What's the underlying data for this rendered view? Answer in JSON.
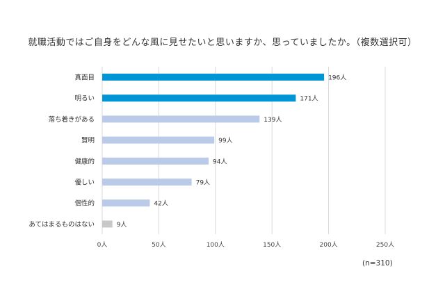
{
  "chart_data": {
    "type": "bar",
    "orientation": "horizontal",
    "title": "就職活動ではご自身をどんな風に見せたいと思いますか、思っていましたか。（複数選択可）",
    "categories": [
      "真面目",
      "明るい",
      "落ち着きがある",
      "賢明",
      "健康的",
      "優しい",
      "個性的",
      "あてはまるものはない"
    ],
    "values": [
      196,
      171,
      139,
      99,
      94,
      79,
      42,
      9
    ],
    "value_labels": [
      "196人",
      "171人",
      "139人",
      "99人",
      "94人",
      "79人",
      "42人",
      "9人"
    ],
    "bar_colors": [
      "#0096d6",
      "#0096d6",
      "#b9cbe8",
      "#b9cbe8",
      "#b9cbe8",
      "#b9cbe8",
      "#b9cbe8",
      "#c8c8c8"
    ],
    "xlim": [
      0,
      250
    ],
    "x_ticks": [
      0,
      50,
      100,
      150,
      200,
      250
    ],
    "x_tick_labels": [
      "0人",
      "50人",
      "100人",
      "150人",
      "200人",
      "250人"
    ],
    "grid": true,
    "note": "(n=310)"
  }
}
